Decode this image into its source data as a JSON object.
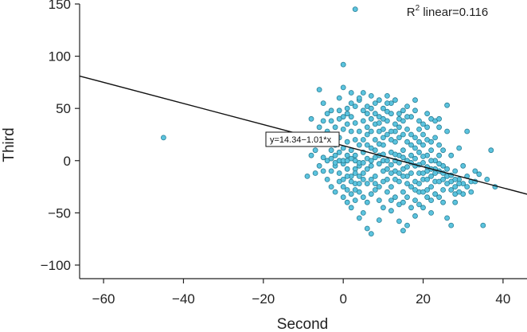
{
  "chart_data": {
    "type": "scatter",
    "title": "",
    "xlabel": "Second",
    "ylabel": "Third",
    "xlim": [
      -66,
      46
    ],
    "ylim": [
      -113,
      150
    ],
    "xticks": [
      -60,
      -40,
      -20,
      0,
      20,
      40
    ],
    "yticks": [
      -100,
      -50,
      0,
      50,
      100,
      150
    ],
    "xtick_labels": [
      "−60",
      "−40",
      "−20",
      "0",
      "20",
      "40"
    ],
    "ytick_labels": [
      "−100",
      "−50",
      "0",
      "50",
      "100",
      "150"
    ],
    "fit_line": {
      "intercept": 14.34,
      "slope": -1.01
    },
    "equation_label": "y=14.34−1.01*x",
    "r2_prefix": "R",
    "r2_sup": "2",
    "r2_text": " linear=0.116",
    "grid": false,
    "marker_color": "#5bc3de",
    "marker_edge": "#2a7f95",
    "points": [
      [
        -45,
        22
      ],
      [
        3,
        145
      ],
      [
        0,
        92
      ],
      [
        -9,
        -15
      ],
      [
        -7,
        -12
      ],
      [
        -6,
        68
      ],
      [
        -5,
        55
      ],
      [
        -4,
        45
      ],
      [
        -3,
        38
      ],
      [
        -2,
        32
      ],
      [
        -1,
        48
      ],
      [
        -1,
        60
      ],
      [
        0,
        70
      ],
      [
        1,
        50
      ],
      [
        2,
        42
      ],
      [
        2,
        55
      ],
      [
        3,
        36
      ],
      [
        4,
        58
      ],
      [
        5,
        48
      ],
      [
        5,
        65
      ],
      [
        6,
        52
      ],
      [
        7,
        62
      ],
      [
        7,
        40
      ],
      [
        8,
        45
      ],
      [
        9,
        58
      ],
      [
        10,
        50
      ],
      [
        11,
        47
      ],
      [
        11,
        62
      ],
      [
        12,
        55
      ],
      [
        13,
        35
      ],
      [
        14,
        45
      ],
      [
        15,
        38
      ],
      [
        16,
        52
      ],
      [
        17,
        42
      ],
      [
        18,
        48
      ],
      [
        19,
        30
      ],
      [
        20,
        35
      ],
      [
        22,
        40
      ],
      [
        23,
        38
      ],
      [
        24,
        32
      ],
      [
        26,
        28
      ],
      [
        26,
        53
      ],
      [
        29,
        12
      ],
      [
        31,
        28
      ],
      [
        34,
        -13
      ],
      [
        35,
        -62
      ],
      [
        36,
        -18
      ],
      [
        37,
        10
      ],
      [
        38,
        -25
      ],
      [
        -2,
        15
      ],
      [
        -1,
        22
      ],
      [
        -3,
        10
      ],
      [
        -4,
        28
      ],
      [
        -5,
        3
      ],
      [
        -6,
        16
      ],
      [
        -7,
        10
      ],
      [
        -8,
        5
      ],
      [
        -2,
        -5
      ],
      [
        -3,
        -10
      ],
      [
        -1,
        -20
      ],
      [
        0,
        -25
      ],
      [
        -2,
        -30
      ],
      [
        0,
        -35
      ],
      [
        1,
        -40
      ],
      [
        2,
        -45
      ],
      [
        3,
        -38
      ],
      [
        4,
        -30
      ],
      [
        5,
        -50
      ],
      [
        4,
        -55
      ],
      [
        6,
        -65
      ],
      [
        7,
        -70
      ],
      [
        9,
        -57
      ],
      [
        12,
        -48
      ],
      [
        14,
        -58
      ],
      [
        16,
        -62
      ],
      [
        15,
        -67
      ],
      [
        18,
        -53
      ],
      [
        20,
        -45
      ],
      [
        22,
        -50
      ],
      [
        24,
        -35
      ],
      [
        26,
        -55
      ],
      [
        27,
        -62
      ],
      [
        28,
        -40
      ],
      [
        30,
        -32
      ],
      [
        32,
        -20
      ],
      [
        1,
        5
      ],
      [
        2,
        10
      ],
      [
        3,
        0
      ],
      [
        3,
        -8
      ],
      [
        4,
        15
      ],
      [
        5,
        8
      ],
      [
        5,
        -12
      ],
      [
        6,
        2
      ],
      [
        6,
        25
      ],
      [
        7,
        12
      ],
      [
        7,
        -5
      ],
      [
        8,
        20
      ],
      [
        8,
        -15
      ],
      [
        9,
        5
      ],
      [
        9,
        28
      ],
      [
        10,
        -10
      ],
      [
        10,
        15
      ],
      [
        10,
        0
      ],
      [
        11,
        25
      ],
      [
        11,
        -18
      ],
      [
        12,
        8
      ],
      [
        12,
        -25
      ],
      [
        13,
        18
      ],
      [
        13,
        0
      ],
      [
        13,
        -10
      ],
      [
        14,
        22
      ],
      [
        14,
        5
      ],
      [
        14,
        -20
      ],
      [
        15,
        10
      ],
      [
        15,
        -8
      ],
      [
        15,
        -30
      ],
      [
        16,
        18
      ],
      [
        16,
        0
      ],
      [
        16,
        -15
      ],
      [
        17,
        25
      ],
      [
        17,
        5
      ],
      [
        17,
        -25
      ],
      [
        18,
        12
      ],
      [
        18,
        -5
      ],
      [
        18,
        -20
      ],
      [
        19,
        8
      ],
      [
        19,
        -12
      ],
      [
        19,
        -30
      ],
      [
        20,
        15
      ],
      [
        20,
        -2
      ],
      [
        20,
        -18
      ],
      [
        21,
        5
      ],
      [
        21,
        -10
      ],
      [
        21,
        -35
      ],
      [
        22,
        10
      ],
      [
        22,
        -15
      ],
      [
        22,
        -25
      ],
      [
        23,
        0
      ],
      [
        23,
        -20
      ],
      [
        24,
        5
      ],
      [
        24,
        -10
      ],
      [
        25,
        -5
      ],
      [
        25,
        -28
      ],
      [
        26,
        -15
      ],
      [
        27,
        5
      ],
      [
        27,
        -20
      ],
      [
        28,
        -10
      ],
      [
        28,
        -25
      ],
      [
        29,
        -18
      ],
      [
        30,
        -5
      ],
      [
        30,
        -22
      ],
      [
        31,
        -15
      ],
      [
        32,
        -30
      ],
      [
        33,
        -10
      ],
      [
        0,
        30
      ],
      [
        1,
        35
      ],
      [
        2,
        28
      ],
      [
        0,
        12
      ],
      [
        1,
        -8
      ],
      [
        0,
        -3
      ],
      [
        2,
        -15
      ],
      [
        3,
        -22
      ],
      [
        4,
        -5
      ],
      [
        5,
        20
      ],
      [
        6,
        32
      ],
      [
        7,
        28
      ],
      [
        8,
        35
      ],
      [
        9,
        42
      ],
      [
        10,
        30
      ],
      [
        11,
        38
      ],
      [
        12,
        20
      ],
      [
        13,
        28
      ],
      [
        14,
        32
      ],
      [
        15,
        25
      ],
      [
        16,
        30
      ],
      [
        17,
        15
      ],
      [
        18,
        22
      ],
      [
        19,
        18
      ],
      [
        20,
        25
      ],
      [
        21,
        20
      ],
      [
        22,
        18
      ],
      [
        23,
        22
      ],
      [
        24,
        15
      ],
      [
        25,
        10
      ],
      [
        -1,
        0
      ],
      [
        -2,
        5
      ],
      [
        0,
        0
      ],
      [
        1,
        0
      ],
      [
        2,
        2
      ],
      [
        3,
        5
      ],
      [
        4,
        -2
      ],
      [
        5,
        -2
      ],
      [
        6,
        -8
      ],
      [
        7,
        0
      ],
      [
        8,
        3
      ],
      [
        9,
        -3
      ],
      [
        10,
        6
      ],
      [
        11,
        0
      ],
      [
        12,
        -4
      ],
      [
        13,
        6
      ],
      [
        14,
        -2
      ],
      [
        15,
        3
      ],
      [
        16,
        -6
      ],
      [
        17,
        -2
      ],
      [
        18,
        2
      ],
      [
        19,
        -4
      ],
      [
        20,
        4
      ],
      [
        21,
        -6
      ],
      [
        22,
        0
      ],
      [
        23,
        -8
      ],
      [
        24,
        -3
      ],
      [
        25,
        -12
      ],
      [
        26,
        -8
      ],
      [
        27,
        -14
      ],
      [
        28,
        -18
      ],
      [
        29,
        -22
      ],
      [
        -4,
        -18
      ],
      [
        -3,
        -25
      ],
      [
        -1,
        -12
      ],
      [
        0,
        -18
      ],
      [
        1,
        -28
      ],
      [
        2,
        -32
      ],
      [
        3,
        -28
      ],
      [
        4,
        -22
      ],
      [
        5,
        -35
      ],
      [
        6,
        -40
      ],
      [
        7,
        -32
      ],
      [
        8,
        -28
      ],
      [
        9,
        -38
      ],
      [
        10,
        -45
      ],
      [
        11,
        -30
      ],
      [
        12,
        -38
      ],
      [
        13,
        -35
      ],
      [
        14,
        -42
      ],
      [
        15,
        -40
      ],
      [
        16,
        -35
      ],
      [
        17,
        -45
      ],
      [
        18,
        -38
      ],
      [
        19,
        -42
      ],
      [
        20,
        -30
      ],
      [
        21,
        -28
      ],
      [
        22,
        -38
      ],
      [
        23,
        -32
      ],
      [
        25,
        -40
      ],
      [
        -5,
        38
      ],
      [
        -3,
        48
      ],
      [
        0,
        42
      ],
      [
        2,
        65
      ],
      [
        4,
        60
      ],
      [
        6,
        45
      ],
      [
        8,
        55
      ],
      [
        11,
        55
      ],
      [
        13,
        58
      ],
      [
        15,
        48
      ],
      [
        18,
        58
      ],
      [
        21,
        32
      ],
      [
        -8,
        40
      ],
      [
        -6,
        32
      ],
      [
        -4,
        20
      ],
      [
        -1,
        8
      ],
      [
        1,
        18
      ],
      [
        3,
        20
      ],
      [
        4,
        28
      ],
      [
        6,
        15
      ],
      [
        8,
        10
      ],
      [
        9,
        16
      ],
      [
        10,
        22
      ],
      [
        12,
        28
      ],
      [
        -10,
        20
      ],
      [
        -6,
        -5
      ],
      [
        -5,
        -10
      ],
      [
        -4,
        0
      ],
      [
        -3,
        2
      ],
      [
        -2,
        -2
      ],
      [
        1,
        -15
      ],
      [
        2,
        -20
      ],
      [
        3,
        -12
      ],
      [
        4,
        -15
      ],
      [
        5,
        -18
      ],
      [
        6,
        -22
      ],
      [
        7,
        -18
      ],
      [
        8,
        -22
      ],
      [
        9,
        -25
      ],
      [
        10,
        -20
      ],
      [
        11,
        -8
      ],
      [
        12,
        -12
      ],
      [
        13,
        -18
      ],
      [
        14,
        -12
      ],
      [
        15,
        -15
      ],
      [
        16,
        -22
      ],
      [
        17,
        -12
      ],
      [
        18,
        -28
      ],
      [
        19,
        -22
      ],
      [
        20,
        -12
      ],
      [
        21,
        -18
      ],
      [
        22,
        -8
      ],
      [
        23,
        -12
      ],
      [
        24,
        -20
      ],
      [
        25,
        -18
      ],
      [
        26,
        -22
      ],
      [
        27,
        -28
      ],
      [
        28,
        -32
      ],
      [
        29,
        -30
      ],
      [
        31,
        -25
      ],
      [
        33,
        -20
      ],
      [
        -1,
        40
      ],
      [
        1,
        45
      ],
      [
        3,
        52
      ],
      [
        5,
        38
      ],
      [
        7,
        50
      ],
      [
        9,
        36
      ],
      [
        10,
        40
      ],
      [
        12,
        45
      ],
      [
        14,
        40
      ],
      [
        16,
        42
      ],
      [
        19,
        38
      ],
      [
        21,
        45
      ],
      [
        24,
        40
      ]
    ]
  }
}
